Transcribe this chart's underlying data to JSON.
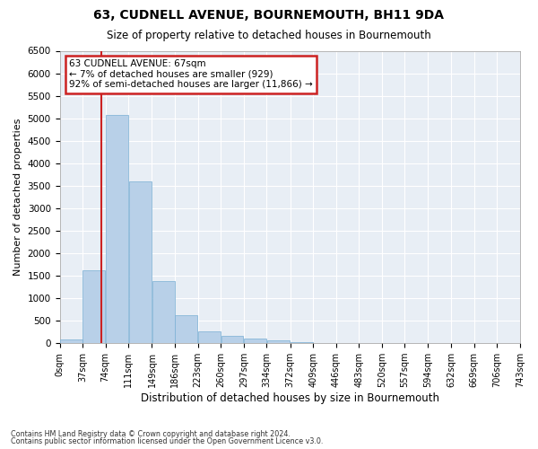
{
  "title1": "63, CUDNELL AVENUE, BOURNEMOUTH, BH11 9DA",
  "title2": "Size of property relative to detached houses in Bournemouth",
  "xlabel": "Distribution of detached houses by size in Bournemouth",
  "ylabel": "Number of detached properties",
  "footer1": "Contains HM Land Registry data © Crown copyright and database right 2024.",
  "footer2": "Contains public sector information licensed under the Open Government Licence v3.0.",
  "annotation_title": "63 CUDNELL AVENUE: 67sqm",
  "annotation_line1": "← 7% of detached houses are smaller (929)",
  "annotation_line2": "92% of semi-detached houses are larger (11,866) →",
  "property_sqm": 67,
  "bar_color": "#b8d0e8",
  "bar_edge_color": "#7aafd4",
  "background_color": "#e8eef5",
  "grid_color": "#ffffff",
  "vline_color": "#cc2222",
  "annotation_box_color": "#cc2222",
  "bin_edges": [
    0,
    37,
    74,
    111,
    149,
    186,
    223,
    260,
    297,
    334,
    372,
    409,
    446,
    483,
    520,
    557,
    594,
    632,
    669,
    706,
    743
  ],
  "bin_labels": [
    "0sqm",
    "37sqm",
    "74sqm",
    "111sqm",
    "149sqm",
    "186sqm",
    "223sqm",
    "260sqm",
    "297sqm",
    "334sqm",
    "372sqm",
    "409sqm",
    "446sqm",
    "483sqm",
    "520sqm",
    "557sqm",
    "594sqm",
    "632sqm",
    "669sqm",
    "706sqm",
    "743sqm"
  ],
  "counts": [
    80,
    1620,
    5080,
    3600,
    1380,
    620,
    270,
    155,
    110,
    55,
    30,
    10,
    5,
    2,
    1,
    0,
    0,
    0,
    0,
    0
  ],
  "ylim": [
    0,
    6500
  ],
  "yticks": [
    0,
    500,
    1000,
    1500,
    2000,
    2500,
    3000,
    3500,
    4000,
    4500,
    5000,
    5500,
    6000,
    6500
  ],
  "fig_width": 6.0,
  "fig_height": 5.0,
  "dpi": 100
}
